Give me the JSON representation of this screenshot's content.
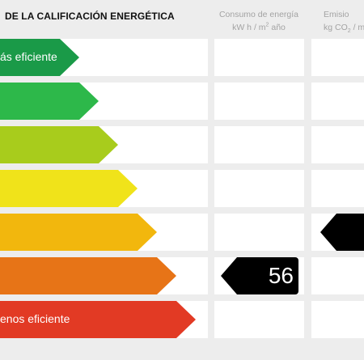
{
  "header": {
    "title": "DE LA CALIFICACIÓN ENERGÉTICA",
    "energy_line1": "Consumo de energía",
    "energy_line2_prefix": "kW h / m",
    "energy_line2_sup": "2",
    "energy_line2_suffix": " año",
    "co2_line1": "Emisio",
    "co2_line2_prefix": "kg CO",
    "co2_line2_sub": "2",
    "co2_line2_suffix": " / m"
  },
  "rating_rows": [
    {
      "label": "ás eficiente",
      "color": "#1a9a48"
    },
    {
      "label": "",
      "color": "#2db84a"
    },
    {
      "label": "",
      "color": "#a8cc1c"
    },
    {
      "label": "",
      "color": "#f0e31a"
    },
    {
      "label": "",
      "color": "#f2b70d"
    },
    {
      "label": "",
      "color": "#e77417"
    },
    {
      "label": "enos eficiente",
      "color": "#e23a24"
    }
  ],
  "energy_indicator": {
    "value": "56"
  },
  "marker_color": "#000000"
}
